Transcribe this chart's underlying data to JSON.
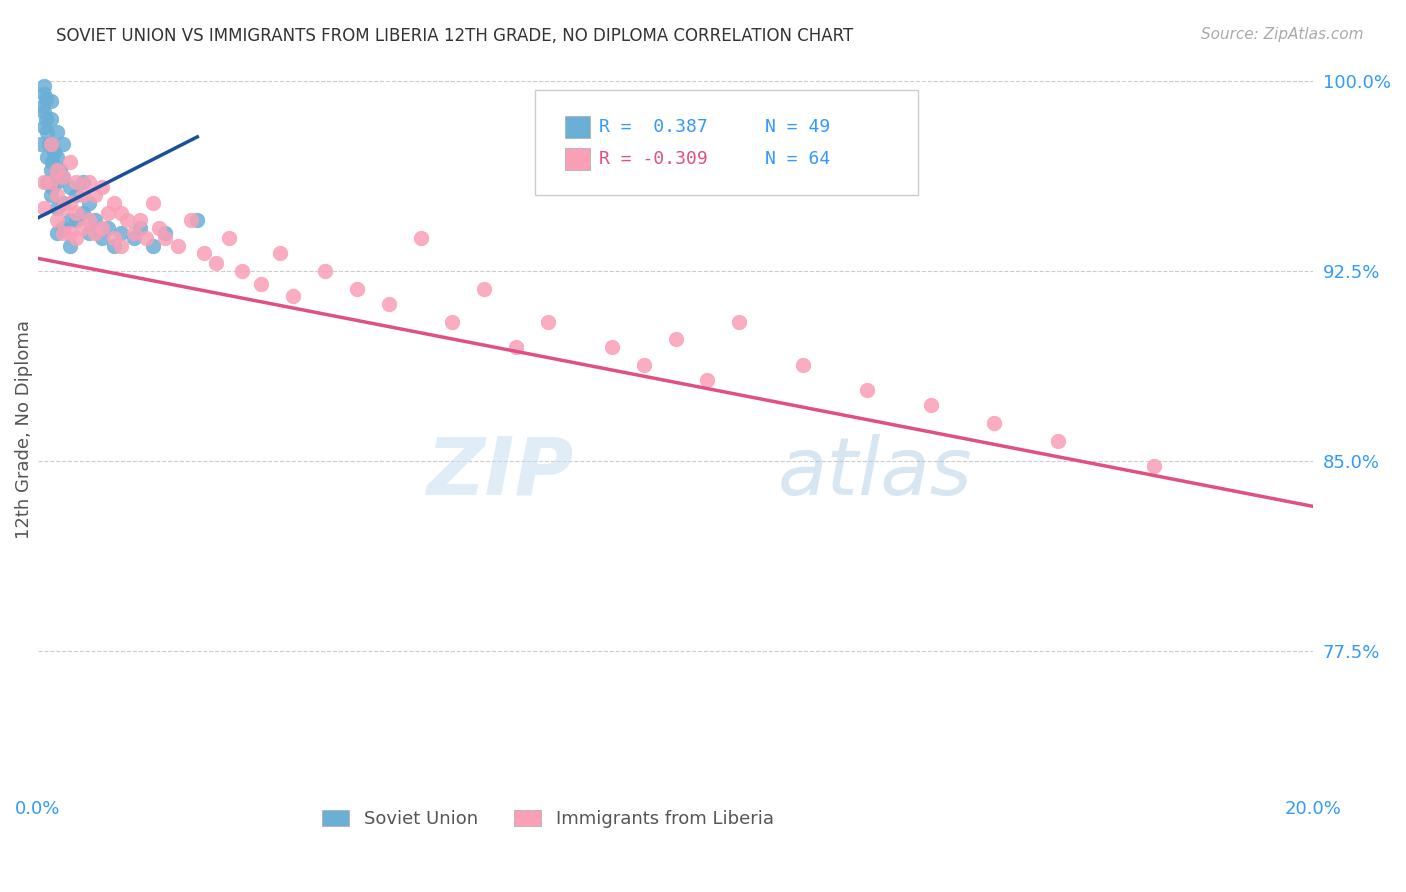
{
  "title": "SOVIET UNION VS IMMIGRANTS FROM LIBERIA 12TH GRADE, NO DIPLOMA CORRELATION CHART",
  "source": "Source: ZipAtlas.com",
  "ylabel": "12th Grade, No Diploma",
  "xlim": [
    0.0,
    0.2
  ],
  "ylim": [
    0.72,
    1.005
  ],
  "yticks": [
    0.775,
    0.85,
    0.925,
    1.0
  ],
  "ytick_labels": [
    "77.5%",
    "85.0%",
    "92.5%",
    "100.0%"
  ],
  "xticks": [
    0.0,
    0.05,
    0.1,
    0.15,
    0.2
  ],
  "xtick_labels": [
    "0.0%",
    "",
    "",
    "",
    "20.0%"
  ],
  "legend_r_soviet": "R =  0.387",
  "legend_n_soviet": "N = 49",
  "legend_r_liberia": "R = -0.309",
  "legend_n_liberia": "N = 64",
  "soviet_color": "#6baed6",
  "liberia_color": "#fa9fb5",
  "trendline_soviet_color": "#1a4f9c",
  "trendline_liberia_color": "#e05080",
  "watermark_zip": "ZIP",
  "watermark_atlas": "atlas",
  "soviet_x": [
    0.0005,
    0.0008,
    0.001,
    0.001,
    0.001,
    0.001,
    0.0012,
    0.0012,
    0.0015,
    0.0015,
    0.0015,
    0.0018,
    0.002,
    0.002,
    0.002,
    0.002,
    0.002,
    0.0022,
    0.0022,
    0.0025,
    0.003,
    0.003,
    0.003,
    0.003,
    0.003,
    0.0035,
    0.004,
    0.004,
    0.004,
    0.004,
    0.005,
    0.005,
    0.005,
    0.006,
    0.006,
    0.007,
    0.007,
    0.008,
    0.008,
    0.009,
    0.01,
    0.011,
    0.012,
    0.013,
    0.015,
    0.016,
    0.018,
    0.02,
    0.025
  ],
  "soviet_y": [
    0.975,
    0.99,
    0.998,
    0.995,
    0.988,
    0.982,
    0.993,
    0.985,
    0.98,
    0.97,
    0.96,
    0.975,
    0.985,
    0.992,
    0.975,
    0.965,
    0.955,
    0.968,
    0.958,
    0.972,
    0.98,
    0.97,
    0.96,
    0.95,
    0.94,
    0.965,
    0.975,
    0.962,
    0.952,
    0.942,
    0.958,
    0.945,
    0.935,
    0.955,
    0.945,
    0.96,
    0.948,
    0.952,
    0.94,
    0.945,
    0.938,
    0.942,
    0.935,
    0.94,
    0.938,
    0.942,
    0.935,
    0.94,
    0.945
  ],
  "liberia_x": [
    0.001,
    0.001,
    0.002,
    0.002,
    0.003,
    0.003,
    0.003,
    0.004,
    0.004,
    0.004,
    0.005,
    0.005,
    0.005,
    0.006,
    0.006,
    0.006,
    0.007,
    0.007,
    0.008,
    0.008,
    0.009,
    0.009,
    0.01,
    0.01,
    0.011,
    0.012,
    0.012,
    0.013,
    0.013,
    0.014,
    0.015,
    0.016,
    0.017,
    0.018,
    0.019,
    0.02,
    0.022,
    0.024,
    0.026,
    0.028,
    0.03,
    0.032,
    0.035,
    0.038,
    0.04,
    0.045,
    0.05,
    0.055,
    0.06,
    0.065,
    0.07,
    0.075,
    0.08,
    0.09,
    0.095,
    0.1,
    0.105,
    0.11,
    0.12,
    0.13,
    0.14,
    0.15,
    0.16,
    0.175
  ],
  "liberia_y": [
    0.96,
    0.95,
    0.975,
    0.96,
    0.965,
    0.955,
    0.945,
    0.962,
    0.95,
    0.94,
    0.968,
    0.952,
    0.94,
    0.96,
    0.948,
    0.938,
    0.955,
    0.942,
    0.96,
    0.945,
    0.955,
    0.94,
    0.958,
    0.942,
    0.948,
    0.952,
    0.938,
    0.948,
    0.935,
    0.945,
    0.94,
    0.945,
    0.938,
    0.952,
    0.942,
    0.938,
    0.935,
    0.945,
    0.932,
    0.928,
    0.938,
    0.925,
    0.92,
    0.932,
    0.915,
    0.925,
    0.918,
    0.912,
    0.938,
    0.905,
    0.918,
    0.895,
    0.905,
    0.895,
    0.888,
    0.898,
    0.882,
    0.905,
    0.888,
    0.878,
    0.872,
    0.865,
    0.858,
    0.848
  ],
  "trendline_liberia_x0": 0.0,
  "trendline_liberia_y0": 0.93,
  "trendline_liberia_x1": 0.2,
  "trendline_liberia_y1": 0.832,
  "trendline_soviet_x0": 0.0,
  "trendline_soviet_y0": 0.946,
  "trendline_soviet_x1": 0.025,
  "trendline_soviet_y1": 0.978
}
